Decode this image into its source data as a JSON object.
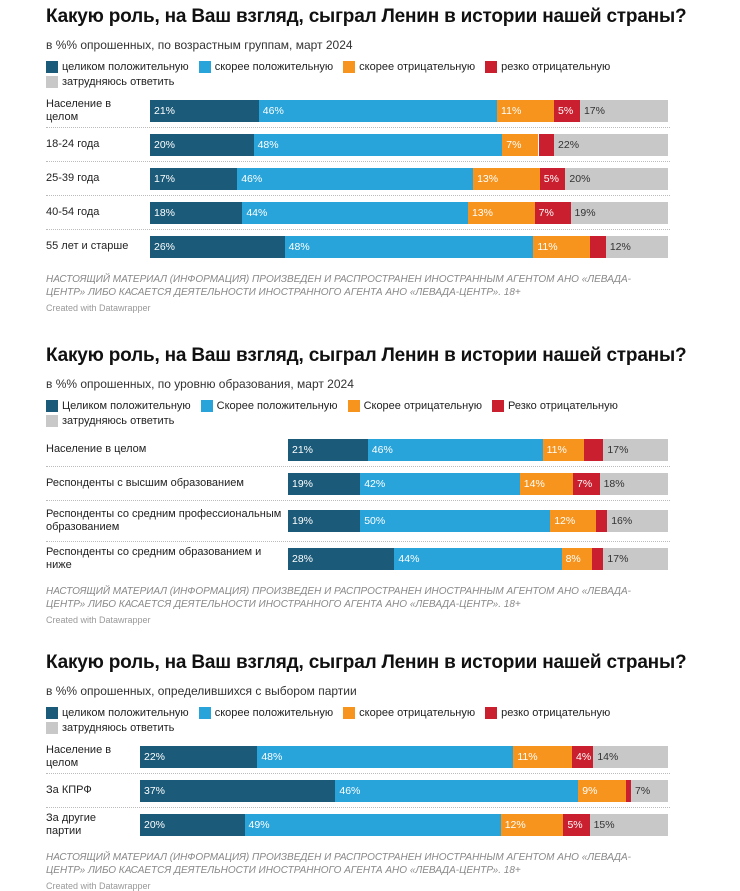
{
  "chart_data": [
    {
      "type": "bar",
      "orientation": "horizontal",
      "stacked": true,
      "title": "Какую роль, на Ваш взгляд, сыграл Ленин в истории нашей страны?",
      "subtitle": "в %% опрошенных, по возрастным группам, март 2024",
      "categories": [
        "Население в целом",
        "18-24 года",
        "25-39 года",
        "40-54 года",
        "55 лет и старше"
      ],
      "series": [
        {
          "name": "целиком положительную",
          "color": "#1b5a78",
          "values": [
            21,
            20,
            17,
            18,
            26
          ],
          "value_labels": [
            "21%",
            "20%",
            "17%",
            "18%",
            "26%"
          ]
        },
        {
          "name": "скорее положительную",
          "color": "#29a4da",
          "values": [
            46,
            48,
            46,
            44,
            48
          ],
          "value_labels": [
            "46%",
            "48%",
            "46%",
            "44%",
            "48%"
          ]
        },
        {
          "name": "скорее отрицательную",
          "color": "#f7941d",
          "values": [
            11,
            7,
            13,
            13,
            11
          ],
          "value_labels": [
            "11%",
            "7%",
            "13%",
            "13%",
            "11%"
          ]
        },
        {
          "name": "резко отрицательную",
          "color": "#c91f2e",
          "values": [
            5,
            3,
            5,
            7,
            3
          ],
          "value_labels": [
            "5%",
            null,
            "5%",
            "7%",
            null
          ]
        },
        {
          "name": "затрудняюсь ответить",
          "color": "#c8c8c8",
          "values": [
            17,
            22,
            20,
            19,
            12
          ],
          "value_labels": [
            "17%",
            "22%",
            "20%",
            "19%",
            "12%"
          ]
        }
      ],
      "footnote": "НАСТОЯЩИЙ МАТЕРИАЛ (ИНФОРМАЦИЯ) ПРОИЗВЕДЕН И РАСПРОСТРАНЕН ИНОСТРАННЫМ АГЕНТОМ АНО «ЛЕВАДА-ЦЕНТР» ЛИБО КАСАЕТСЯ ДЕЯТЕЛЬНОСТИ ИНОСТРАННОГО АГЕНТА АНО «ЛЕВАДА-ЦЕНТР». 18+",
      "credit": "Created with Datawrapper"
    },
    {
      "type": "bar",
      "orientation": "horizontal",
      "stacked": true,
      "title": "Какую роль, на Ваш взгляд, сыграл Ленин в истории нашей страны?",
      "subtitle": "в %% опрошенных, по уровню образования, март 2024",
      "categories": [
        "Население в целом",
        "Респонденты с высшим образованием",
        "Респонденты со средним профессиональным образованием",
        "Респонденты со средним образованием и ниже"
      ],
      "series": [
        {
          "name": "Целиком положительную",
          "color": "#1b5a78",
          "values": [
            21,
            19,
            19,
            28
          ],
          "value_labels": [
            "21%",
            "19%",
            "19%",
            "28%"
          ]
        },
        {
          "name": "Скорее положительную",
          "color": "#29a4da",
          "values": [
            46,
            42,
            50,
            44
          ],
          "value_labels": [
            "46%",
            "42%",
            "50%",
            "44%"
          ]
        },
        {
          "name": "Скорее отрицательную",
          "color": "#f7941d",
          "values": [
            11,
            14,
            12,
            8
          ],
          "value_labels": [
            "11%",
            "14%",
            "12%",
            "8%"
          ]
        },
        {
          "name": "Резко отрицательную",
          "color": "#c91f2e",
          "values": [
            5,
            7,
            3,
            3
          ],
          "value_labels": [
            null,
            "7%",
            null,
            null
          ]
        },
        {
          "name": "затрудняюсь ответить",
          "color": "#c8c8c8",
          "values": [
            17,
            18,
            16,
            17
          ],
          "value_labels": [
            "17%",
            "18%",
            "16%",
            "17%"
          ]
        }
      ],
      "footnote": "НАСТОЯЩИЙ МАТЕРИАЛ (ИНФОРМАЦИЯ) ПРОИЗВЕДЕН И РАСПРОСТРАНЕН ИНОСТРАННЫМ АГЕНТОМ АНО «ЛЕВАДА-ЦЕНТР» ЛИБО КАСАЕТСЯ ДЕЯТЕЛЬНОСТИ ИНОСТРАННОГО АГЕНТА АНО «ЛЕВАДА-ЦЕНТР». 18+",
      "credit": "Created with Datawrapper"
    },
    {
      "type": "bar",
      "orientation": "horizontal",
      "stacked": true,
      "title": "Какую роль, на Ваш взгляд, сыграл Ленин в истории нашей страны?",
      "subtitle": "в %% опрошенных, определившихся с выбором партии",
      "categories": [
        "Население в целом",
        "За КПРФ",
        "За другие партии"
      ],
      "series": [
        {
          "name": "целиком положительную",
          "color": "#1b5a78",
          "values": [
            22,
            37,
            20
          ],
          "value_labels": [
            "22%",
            "37%",
            "20%"
          ]
        },
        {
          "name": "скорее положительную",
          "color": "#29a4da",
          "values": [
            48,
            46,
            49
          ],
          "value_labels": [
            "48%",
            "46%",
            "49%"
          ]
        },
        {
          "name": "скорее отрицательную",
          "color": "#f7941d",
          "values": [
            11,
            9,
            12
          ],
          "value_labels": [
            "11%",
            "9%",
            "12%"
          ]
        },
        {
          "name": "резко отрицательную",
          "color": "#c91f2e",
          "values": [
            4,
            1,
            5
          ],
          "value_labels": [
            "4%",
            null,
            "5%"
          ]
        },
        {
          "name": "затрудняюсь ответить",
          "color": "#c8c8c8",
          "values": [
            14,
            7,
            15
          ],
          "value_labels": [
            "14%",
            "7%",
            "15%"
          ]
        }
      ],
      "footnote": "НАСТОЯЩИЙ МАТЕРИАЛ (ИНФОРМАЦИЯ) ПРОИЗВЕДЕН И РАСПРОСТРАНЕН ИНОСТРАННЫМ АГЕНТОМ АНО «ЛЕВАДА-ЦЕНТР» ЛИБО КАСАЕТСЯ ДЕЯТЕЛЬНОСТИ ИНОСТРАННОГО АГЕНТА АНО «ЛЕВАДА-ЦЕНТР». 18+",
      "credit": "Created with Datawrapper"
    }
  ]
}
